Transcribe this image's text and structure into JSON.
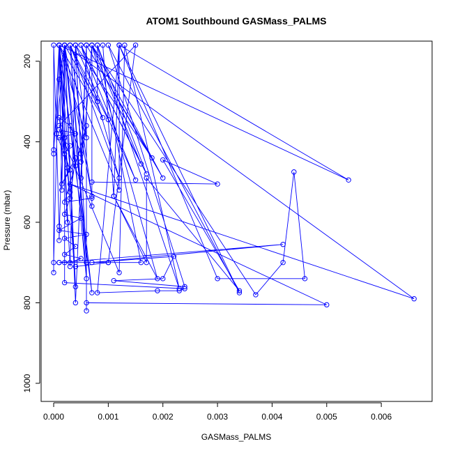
{
  "chart_data": {
    "type": "scatter",
    "title": "ATOM1 Southbound GASMass_PALMS",
    "xlabel": "GASMass_PALMS",
    "ylabel": "Pressure (mbar)",
    "xlim": [
      -0.00023,
      0.00693
    ],
    "ylim": [
      1045,
      150
    ],
    "y_reversed": true,
    "x_ticks": [
      0.0,
      0.001,
      0.002,
      0.003,
      0.004,
      0.005,
      0.006
    ],
    "x_tick_labels": [
      "0.000",
      "0.001",
      "0.002",
      "0.003",
      "0.004",
      "0.005",
      "0.006"
    ],
    "y_ticks": [
      200,
      400,
      600,
      800,
      1000
    ],
    "y_tick_labels": [
      "200",
      "400",
      "600",
      "800",
      "1000"
    ],
    "grid": false,
    "legend": "none",
    "series": [
      {
        "color": "#0000ff",
        "style": "both",
        "points": [
          [
            0.0002,
            160
          ],
          [
            5e-05,
            380
          ],
          [
            0.0003,
            470
          ],
          [
            0.0001,
            160
          ],
          [
            0.00015,
            520
          ],
          [
            0.0002,
            160
          ],
          [
            0.0004,
            460
          ],
          [
            0.0001,
            160
          ],
          [
            0.00025,
            600
          ],
          [
            0.0001,
            160
          ],
          [
            0.0009,
            340
          ],
          [
            0.0003,
            160
          ],
          [
            0.0012,
            490
          ],
          [
            0.0005,
            160
          ],
          [
            0.0015,
            495
          ],
          [
            0.0004,
            160
          ],
          [
            0.0018,
            440
          ],
          [
            0.0006,
            160
          ],
          [
            0.002,
            490
          ],
          [
            0.0007,
            160
          ],
          [
            0.0016,
            455
          ],
          [
            0.0005,
            160
          ],
          [
            0.0017,
            480
          ],
          [
            0.0008,
            160
          ],
          [
            0.0008,
            300
          ],
          [
            0.0002,
            160
          ],
          [
            0.0007,
            535
          ],
          [
            0.0003,
            160
          ],
          [
            0.001,
            345
          ],
          [
            0.0009,
            160
          ],
          [
            0.0011,
            535
          ],
          [
            0.0012,
            160
          ],
          [
            0.0012,
            520
          ],
          [
            0.0001,
            160
          ],
          [
            0.0006,
            390
          ],
          [
            0.0004,
            160
          ],
          [
            0.0005,
            450
          ],
          [
            0.0006,
            160
          ],
          [
            0.0005,
            490
          ],
          [
            0.0007,
            160
          ],
          [
            0.0007,
            560
          ],
          [
            0.0007,
            500
          ],
          [
            0.003,
            505
          ],
          [
            0.002,
            445
          ],
          [
            0.0034,
            770
          ],
          [
            0.0017,
            490
          ],
          [
            0.0017,
            700
          ],
          [
            0.0011,
            535
          ],
          [
            0.0019,
            740
          ],
          [
            0.0007,
            160
          ],
          [
            0.0037,
            780
          ],
          [
            0.0042,
            700
          ],
          [
            0.0044,
            475
          ],
          [
            0.0046,
            740
          ],
          [
            0.003,
            740
          ],
          [
            0.0012,
            160
          ],
          [
            0.0054,
            495
          ],
          [
            0.0001,
            160
          ],
          [
            0.0003,
            710
          ],
          [
            0.0004,
            160
          ],
          [
            0.0006,
            700
          ],
          [
            0.0003,
            160
          ],
          [
            0.0006,
            740
          ],
          [
            0.0002,
            160
          ],
          [
            0.0066,
            790
          ],
          [
            0.0003,
            505
          ],
          [
            0.005,
            805
          ],
          [
            0.0006,
            800
          ],
          [
            0.0006,
            820
          ],
          [
            0.0006,
            160
          ],
          [
            0.0004,
            800
          ],
          [
            0.0002,
            160
          ],
          [
            0.0004,
            760
          ],
          [
            0.0001,
            160
          ],
          [
            0.0007,
            775
          ],
          [
            0.0002,
            160
          ],
          [
            0.0001,
            245
          ],
          [
            0.0,
            420
          ],
          [
            0.0,
            430
          ],
          [
            0.0001,
            160
          ],
          [
            0.0,
            700
          ],
          [
            0.0,
            725
          ],
          [
            0.0,
            160
          ],
          [
            0.0001,
            610
          ],
          [
            0.0001,
            645
          ],
          [
            0.0002,
            160
          ],
          [
            0.0002,
            750
          ],
          [
            0.0024,
            765
          ],
          [
            0.0023,
            770
          ],
          [
            0.0019,
            770
          ],
          [
            0.0008,
            775
          ],
          [
            0.0012,
            160
          ],
          [
            0.0034,
            775
          ],
          [
            0.001,
            160
          ],
          [
            0.0024,
            760
          ],
          [
            0.0011,
            745
          ],
          [
            0.002,
            740
          ],
          [
            0.0022,
            685
          ],
          [
            0.0007,
            700
          ],
          [
            0.0042,
            655
          ],
          [
            0.0001,
            700
          ],
          [
            0.0016,
            700
          ],
          [
            0.0008,
            160
          ],
          [
            0.0023,
            765
          ],
          [
            0.0013,
            160
          ],
          [
            0.0012,
            725
          ],
          [
            0.0001,
            370
          ],
          [
            0.0004,
            380
          ],
          [
            0.0001,
            390
          ],
          [
            0.0003,
            410
          ],
          [
            0.0002,
            430
          ],
          [
            0.0003,
            470
          ],
          [
            0.00015,
            505
          ],
          [
            0.0004,
            440
          ],
          [
            0.0003,
            540
          ],
          [
            0.0002,
            580
          ],
          [
            0.0005,
            590
          ],
          [
            0.0001,
            620
          ],
          [
            0.0006,
            630
          ],
          [
            0.0002,
            640
          ],
          [
            0.0004,
            660
          ],
          [
            0.0002,
            680
          ],
          [
            0.0005,
            690
          ],
          [
            0.0003,
            700
          ],
          [
            0.0002,
            700
          ],
          [
            0.0001,
            700
          ],
          [
            0.001,
            700
          ],
          [
            0.0004,
            710
          ],
          [
            0.001,
            700
          ],
          [
            0.0015,
            160
          ],
          [
            0.0001,
            360
          ],
          [
            0.0002,
            390
          ],
          [
            0.00025,
            465
          ],
          [
            0.0003,
            525
          ],
          [
            0.0001,
            340
          ],
          [
            0.0003,
            360
          ],
          [
            0.0005,
            430
          ],
          [
            0.0006,
            360
          ],
          [
            0.0002,
            550
          ],
          [
            0.0007,
            540
          ]
        ]
      }
    ]
  }
}
